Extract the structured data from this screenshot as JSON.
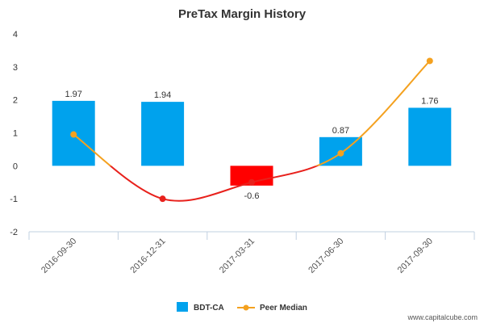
{
  "chart_data": {
    "type": "bar",
    "title": "PreTax Margin History",
    "categories": [
      "2016-09-30",
      "2016-12-31",
      "2017-03-31",
      "2017-06-30",
      "2017-09-30"
    ],
    "series": [
      {
        "name": "BDT-CA",
        "type": "bar",
        "values": [
          1.97,
          1.94,
          -0.6,
          0.87,
          1.76
        ],
        "labels": [
          "1.97",
          "1.94",
          "-0.6",
          "0.87",
          "1.76"
        ]
      },
      {
        "name": "Peer Median",
        "type": "line",
        "values": [
          0.95,
          -1.0,
          -0.5,
          0.38,
          3.18
        ]
      }
    ],
    "ylim": [
      -2,
      4
    ],
    "yticks": [
      -2,
      -1,
      0,
      1,
      2,
      3,
      4
    ],
    "legend": "bottom-center",
    "colors": {
      "bar_positive": "#00a2ed",
      "bar_negative": "#ff0000",
      "line_above_zero": "#f4a11f",
      "line_below_zero": "#e8211c"
    }
  },
  "credit": "www.capitalcube.com"
}
